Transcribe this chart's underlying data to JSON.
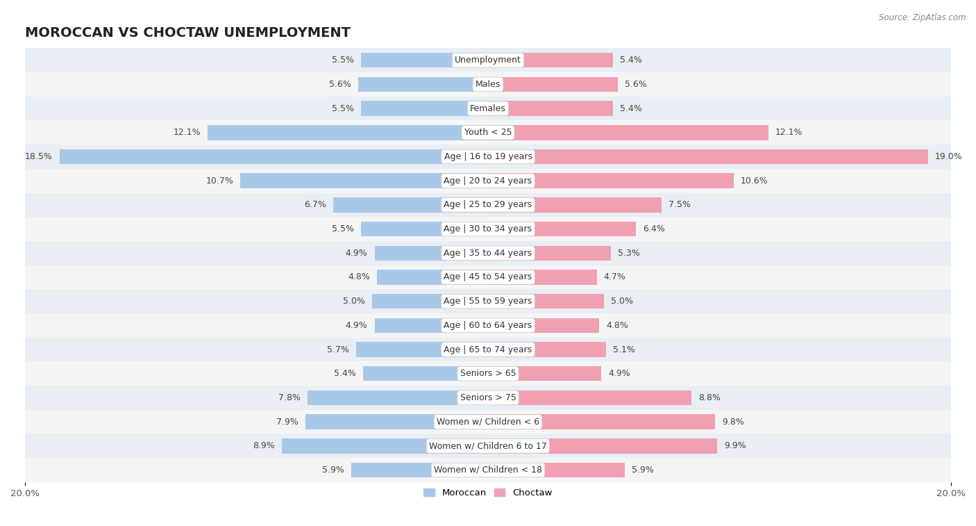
{
  "title": "MOROCCAN VS CHOCTAW UNEMPLOYMENT",
  "source": "Source: ZipAtlas.com",
  "categories": [
    "Unemployment",
    "Males",
    "Females",
    "Youth < 25",
    "Age | 16 to 19 years",
    "Age | 20 to 24 years",
    "Age | 25 to 29 years",
    "Age | 30 to 34 years",
    "Age | 35 to 44 years",
    "Age | 45 to 54 years",
    "Age | 55 to 59 years",
    "Age | 60 to 64 years",
    "Age | 65 to 74 years",
    "Seniors > 65",
    "Seniors > 75",
    "Women w/ Children < 6",
    "Women w/ Children 6 to 17",
    "Women w/ Children < 18"
  ],
  "moroccan": [
    5.5,
    5.6,
    5.5,
    12.1,
    18.5,
    10.7,
    6.7,
    5.5,
    4.9,
    4.8,
    5.0,
    4.9,
    5.7,
    5.4,
    7.8,
    7.9,
    8.9,
    5.9
  ],
  "choctaw": [
    5.4,
    5.6,
    5.4,
    12.1,
    19.0,
    10.6,
    7.5,
    6.4,
    5.3,
    4.7,
    5.0,
    4.8,
    5.1,
    4.9,
    8.8,
    9.8,
    9.9,
    5.9
  ],
  "moroccan_color": "#a8c8e8",
  "choctaw_color": "#f0a0b0",
  "background_row_even": "#e8eef4",
  "background_row_odd": "#f5f5f5",
  "axis_limit": 20.0,
  "label_fontsize": 9.0,
  "title_fontsize": 14,
  "source_fontsize": 8.5,
  "bar_height": 0.62,
  "legend_fontsize": 9.5
}
